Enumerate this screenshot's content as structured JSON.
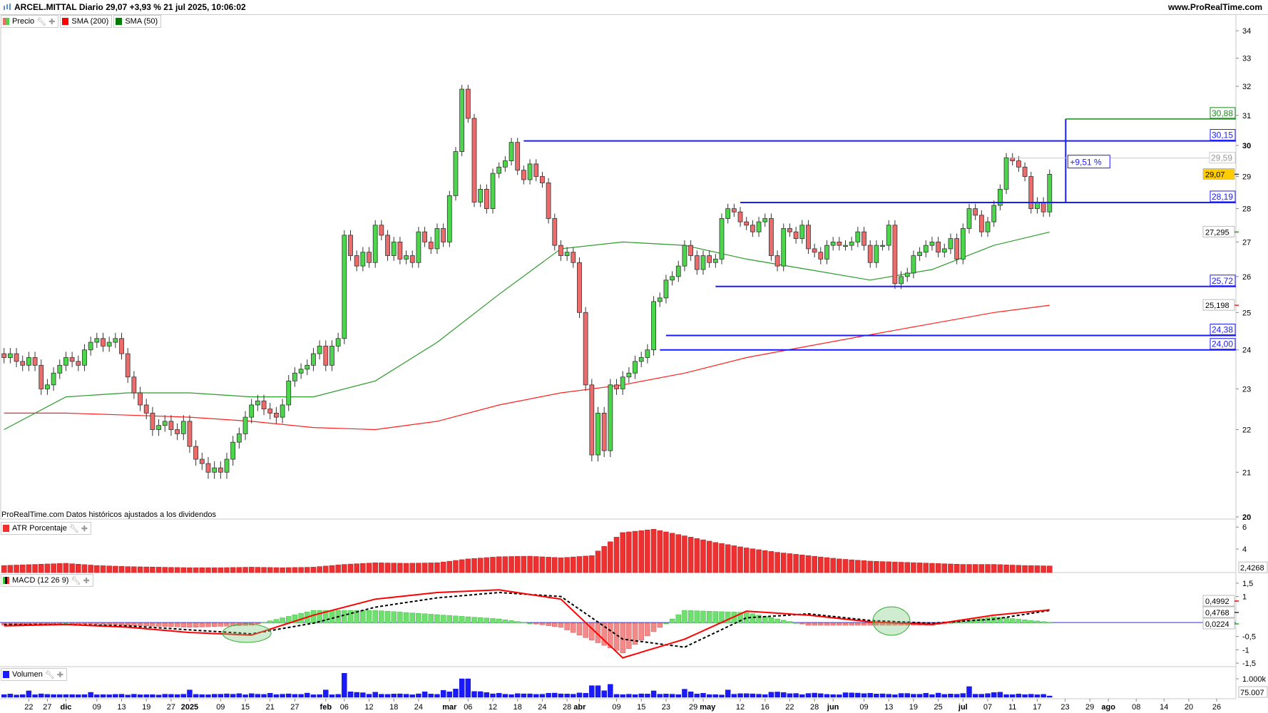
{
  "header": {
    "title": "ARCEL.MITTAL Diario 29,07 +3,93 % 21 jul 2025, 10:06:02",
    "site": "www.ProRealTime.com"
  },
  "legend": {
    "price": "Precio",
    "sma200": "SMA (200)",
    "sma50": "SMA (50)"
  },
  "footnote": "ProRealTime.com Datos históricos ajustados a los dividendos",
  "panels": {
    "atr": "ATR Porcentaje",
    "macd": "MACD (12 26 9)",
    "volume": "Volumen"
  },
  "colors": {
    "up": "#4cd64c",
    "down": "#ee6b6b",
    "sma200": "#ff2020",
    "sma50": "#2a9a2a",
    "levels": "#1a1aff",
    "target": "#1a8a1a",
    "atr": "#ee3030",
    "macd": "#ff0000",
    "signal": "#000000",
    "volume": "#1a1aff",
    "current_price_box": "#ffcc00"
  },
  "x_axis": {
    "ticks": [
      {
        "label": "22",
        "bar": 4
      },
      {
        "label": "27",
        "bar": 7
      },
      {
        "label": "dic",
        "bar": 10,
        "bold": true
      },
      {
        "label": "09",
        "bar": 15
      },
      {
        "label": "13",
        "bar": 19
      },
      {
        "label": "19",
        "bar": 23
      },
      {
        "label": "27",
        "bar": 27
      },
      {
        "label": "2025",
        "bar": 30,
        "bold": true
      },
      {
        "label": "09",
        "bar": 35
      },
      {
        "label": "15",
        "bar": 39
      },
      {
        "label": "21",
        "bar": 43
      },
      {
        "label": "27",
        "bar": 47
      },
      {
        "label": "feb",
        "bar": 52,
        "bold": true
      },
      {
        "label": "06",
        "bar": 55
      },
      {
        "label": "12",
        "bar": 59
      },
      {
        "label": "18",
        "bar": 63
      },
      {
        "label": "24",
        "bar": 67
      },
      {
        "label": "mar",
        "bar": 72,
        "bold": true
      },
      {
        "label": "06",
        "bar": 75
      },
      {
        "label": "12",
        "bar": 79
      },
      {
        "label": "18",
        "bar": 83
      },
      {
        "label": "24",
        "bar": 87
      },
      {
        "label": "28",
        "bar": 91
      },
      {
        "label": "abr",
        "bar": 93,
        "bold": true
      },
      {
        "label": "09",
        "bar": 99
      },
      {
        "label": "15",
        "bar": 103
      },
      {
        "label": "23",
        "bar": 107
      },
      {
        "label": "29",
        "bar": 111.4
      },
      {
        "label": "may",
        "bar": 113,
        "bold": true
      },
      {
        "label": "12",
        "bar": 119
      },
      {
        "label": "16",
        "bar": 123
      },
      {
        "label": "22",
        "bar": 127
      },
      {
        "label": "28",
        "bar": 131
      },
      {
        "label": "jun",
        "bar": 134,
        "bold": true
      },
      {
        "label": "09",
        "bar": 139
      },
      {
        "label": "13",
        "bar": 143
      },
      {
        "label": "19",
        "bar": 147
      },
      {
        "label": "25",
        "bar": 151
      },
      {
        "label": "jul",
        "bar": 155,
        "bold": true
      },
      {
        "label": "07",
        "bar": 159
      },
      {
        "label": "11",
        "bar": 163
      },
      {
        "label": "17",
        "bar": 167
      },
      {
        "label": "23",
        "bar": 171.5
      },
      {
        "label": "29",
        "bar": 175.5
      },
      {
        "label": "ago",
        "bar": 178.5,
        "bold": true
      },
      {
        "label": "08",
        "bar": 183
      },
      {
        "label": "14",
        "bar": 187.5
      },
      {
        "label": "20",
        "bar": 191.5
      },
      {
        "label": "26",
        "bar": 196
      }
    ]
  },
  "chart_data": [
    {
      "id": "price",
      "type": "candlestick",
      "y_scale": "log",
      "ylim": [
        20,
        34.5
      ],
      "y_ticks": [
        20,
        21,
        22,
        23,
        24,
        25,
        26,
        27,
        28,
        29,
        30,
        31,
        32,
        33,
        34
      ],
      "grid": false,
      "close": [
        23.8,
        23.9,
        23.7,
        23.6,
        23.8,
        23.6,
        23.0,
        23.1,
        23.4,
        23.6,
        23.8,
        23.7,
        23.6,
        24.0,
        24.2,
        24.3,
        24.1,
        24.2,
        24.3,
        23.9,
        23.3,
        22.9,
        22.6,
        22.4,
        22.0,
        22.1,
        22.2,
        22.0,
        21.9,
        22.2,
        21.6,
        21.3,
        21.2,
        21.0,
        21.1,
        21.0,
        21.3,
        21.7,
        21.9,
        22.3,
        22.6,
        22.7,
        22.5,
        22.4,
        22.3,
        22.6,
        23.2,
        23.4,
        23.5,
        23.6,
        23.9,
        24.1,
        23.6,
        24.1,
        24.3,
        27.2,
        26.6,
        26.3,
        26.7,
        26.4,
        27.5,
        27.2,
        26.6,
        27.0,
        26.5,
        26.6,
        26.4,
        27.3,
        27.0,
        26.8,
        27.4,
        27.0,
        28.4,
        29.8,
        31.9,
        30.9,
        28.2,
        28.6,
        28.0,
        29.1,
        29.3,
        29.5,
        30.1,
        29.2,
        28.9,
        29.4,
        29.0,
        28.8,
        27.7,
        26.9,
        26.6,
        26.7,
        26.4,
        25.0,
        23.1,
        21.4,
        22.4,
        21.5,
        23.1,
        23.0,
        23.3,
        23.4,
        23.7,
        23.8,
        24.0,
        25.3,
        25.4,
        25.9,
        26.0,
        26.3,
        26.9,
        26.6,
        26.2,
        26.6,
        26.4,
        26.5,
        27.7,
        28.0,
        27.9,
        27.6,
        27.5,
        27.3,
        27.6,
        27.7,
        26.6,
        26.3,
        27.4,
        27.3,
        27.1,
        27.5,
        26.8,
        26.7,
        26.5,
        26.9,
        27.0,
        26.9,
        26.9,
        27.0,
        27.3,
        26.9,
        26.4,
        26.9,
        26.9,
        27.5,
        25.8,
        26.0,
        26.1,
        26.6,
        26.7,
        26.9,
        27.0,
        26.7,
        26.8,
        27.1,
        26.5,
        27.4,
        28.0,
        27.8,
        27.3,
        27.6,
        28.1,
        28.6,
        29.6,
        29.5,
        29.3,
        29.0,
        28.0,
        28.2,
        27.9,
        29.07
      ],
      "sma200": [
        [
          0,
          22.4
        ],
        [
          10,
          22.4
        ],
        [
          20,
          22.35
        ],
        [
          30,
          22.3
        ],
        [
          40,
          22.2
        ],
        [
          50,
          22.05
        ],
        [
          60,
          22.0
        ],
        [
          70,
          22.2
        ],
        [
          80,
          22.6
        ],
        [
          90,
          22.9
        ],
        [
          100,
          23.1
        ],
        [
          110,
          23.4
        ],
        [
          120,
          23.8
        ],
        [
          130,
          24.1
        ],
        [
          140,
          24.4
        ],
        [
          150,
          24.7
        ],
        [
          160,
          25.0
        ],
        [
          169,
          25.198
        ]
      ],
      "sma50": [
        [
          0,
          22.0
        ],
        [
          10,
          22.8
        ],
        [
          20,
          22.9
        ],
        [
          30,
          22.9
        ],
        [
          40,
          22.8
        ],
        [
          50,
          22.8
        ],
        [
          60,
          23.2
        ],
        [
          70,
          24.2
        ],
        [
          80,
          25.5
        ],
        [
          90,
          26.8
        ],
        [
          100,
          27.0
        ],
        [
          110,
          26.9
        ],
        [
          120,
          26.5
        ],
        [
          130,
          26.2
        ],
        [
          140,
          25.9
        ],
        [
          150,
          26.2
        ],
        [
          160,
          26.9
        ],
        [
          169,
          27.295
        ]
      ],
      "levels": [
        {
          "value": 30.15,
          "label": "30,15",
          "from_bar": 84
        },
        {
          "value": 28.19,
          "label": "28,19",
          "from_bar": 119
        },
        {
          "value": 25.72,
          "label": "25,72",
          "from_bar": 115
        },
        {
          "value": 24.38,
          "label": "24,38",
          "from_bar": 107
        },
        {
          "value": 24.0,
          "label": "24,00",
          "from_bar": 106
        }
      ],
      "target": {
        "value": 30.88,
        "label": "30,88",
        "from": 28.19,
        "bar": 171.6
      },
      "high_marker": {
        "value": 29.59,
        "label": "29,59",
        "from_bar": 162.5
      },
      "measure": {
        "label": "+9,51 %"
      },
      "last_labels": {
        "price": "29,07",
        "sma50": "27,295",
        "sma200": "25,198"
      }
    },
    {
      "id": "atr",
      "type": "bar",
      "title": "ATR Porcentaje",
      "y_ticks": [
        4,
        6
      ],
      "sample_step_bars": 5,
      "values_sampled": [
        2.5,
        2.6,
        2.7,
        2.5,
        2.4,
        2.35,
        2.3,
        2.3,
        2.35,
        2.3,
        2.35,
        2.6,
        2.75,
        2.7,
        2.75,
        3.1,
        3.3,
        3.35,
        3.2,
        3.4,
        5.5,
        5.8,
        5.2,
        4.6,
        4.1,
        3.7,
        3.4,
        3.1,
        2.9,
        2.8,
        2.7,
        2.6,
        2.6,
        2.5,
        2.45,
        2.4268
      ],
      "last_label": "2,4268"
    },
    {
      "id": "macd",
      "type": "line",
      "title": "MACD (12 26 9)",
      "y_ticks": [
        {
          "v": 1.5,
          "t": "1,5"
        },
        {
          "v": 1,
          "t": "1"
        },
        {
          "v": -0.5,
          "t": "-0,5"
        },
        {
          "v": -1,
          "t": "-1"
        },
        {
          "v": -1.5,
          "t": "-1,5"
        }
      ],
      "macd": [
        [
          0,
          -0.1
        ],
        [
          10,
          -0.05
        ],
        [
          20,
          -0.15
        ],
        [
          30,
          -0.35
        ],
        [
          40,
          -0.45
        ],
        [
          50,
          0.3
        ],
        [
          60,
          0.9
        ],
        [
          70,
          1.15
        ],
        [
          80,
          1.25
        ],
        [
          90,
          0.9
        ],
        [
          100,
          -1.3
        ],
        [
          110,
          -0.6
        ],
        [
          120,
          0.45
        ],
        [
          130,
          0.3
        ],
        [
          140,
          0.05
        ],
        [
          150,
          -0.05
        ],
        [
          160,
          0.3
        ],
        [
          169,
          0.4992
        ]
      ],
      "signal": [
        [
          0,
          -0.05
        ],
        [
          10,
          -0.05
        ],
        [
          20,
          -0.1
        ],
        [
          30,
          -0.25
        ],
        [
          40,
          -0.4
        ],
        [
          50,
          0.0
        ],
        [
          60,
          0.6
        ],
        [
          70,
          0.95
        ],
        [
          80,
          1.15
        ],
        [
          90,
          1.0
        ],
        [
          100,
          -0.6
        ],
        [
          110,
          -0.9
        ],
        [
          120,
          0.2
        ],
        [
          130,
          0.35
        ],
        [
          140,
          0.1
        ],
        [
          150,
          0.0
        ],
        [
          160,
          0.15
        ],
        [
          169,
          0.4768
        ]
      ],
      "last_labels": {
        "macd": "0,4992",
        "signal": "0,4768",
        "histogram": "0,0224"
      }
    },
    {
      "id": "volume",
      "type": "bar",
      "title": "Volumen",
      "unit": "k",
      "y_ticks": [
        {
          "v": 1000,
          "t": "1.000k"
        }
      ],
      "values": [
        150,
        180,
        130,
        150,
        350,
        140,
        190,
        160,
        150,
        150,
        150,
        150,
        140,
        150,
        270,
        140,
        150,
        140,
        160,
        170,
        130,
        170,
        140,
        150,
        150,
        130,
        170,
        160,
        150,
        170,
        400,
        160,
        150,
        140,
        170,
        170,
        190,
        170,
        200,
        140,
        200,
        170,
        160,
        220,
        150,
        170,
        190,
        160,
        160,
        230,
        140,
        150,
        400,
        140,
        160,
        1300,
        300,
        270,
        250,
        170,
        280,
        170,
        160,
        180,
        190,
        170,
        140,
        190,
        300,
        180,
        160,
        380,
        300,
        450,
        1000,
        1000,
        320,
        310,
        260,
        190,
        220,
        170,
        150,
        200,
        190,
        190,
        160,
        170,
        220,
        230,
        190,
        180,
        170,
        240,
        220,
        630,
        630,
        360,
        700,
        160,
        150,
        170,
        150,
        190,
        180,
        350,
        170,
        180,
        170,
        150,
        440,
        300,
        180,
        220,
        150,
        150,
        130,
        400,
        170,
        200,
        200,
        190,
        170,
        150,
        280,
        290,
        260,
        200,
        210,
        150,
        210,
        230,
        200,
        160,
        150,
        140,
        250,
        240,
        230,
        200,
        220,
        180,
        190,
        170,
        140,
        210,
        210,
        170,
        170,
        220,
        150,
        230,
        160,
        180,
        170,
        210,
        580,
        170,
        170,
        200,
        260,
        280,
        150,
        150,
        180,
        150,
        170,
        140,
        160,
        75
      ],
      "last_label": "75.007"
    }
  ]
}
